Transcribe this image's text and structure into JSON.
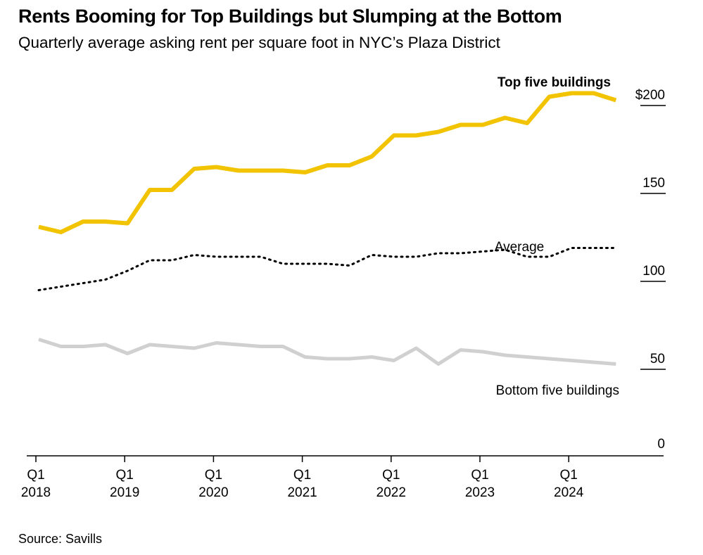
{
  "header": {
    "title": "Rents Booming for Top Buildings but Slumping at the Bottom",
    "subtitle": "Quarterly average asking rent per square foot in NYC’s Plaza District"
  },
  "footer": {
    "source": "Source: Savills"
  },
  "colors": {
    "top": "#f2c300",
    "average": "#000000",
    "bottom": "#d0d0d0",
    "axis": "#000000"
  },
  "chart_data": {
    "type": "line",
    "title": "Rents Booming for Top Buildings but Slumping at the Bottom",
    "subtitle": "Quarterly average asking rent per square foot in NYC’s Plaza District",
    "xlabel": "",
    "ylabel": "",
    "x": [
      "Q1 2018",
      "Q2 2018",
      "Q3 2018",
      "Q4 2018",
      "Q1 2019",
      "Q2 2019",
      "Q3 2019",
      "Q4 2019",
      "Q1 2020",
      "Q2 2020",
      "Q3 2020",
      "Q4 2020",
      "Q1 2021",
      "Q2 2021",
      "Q3 2021",
      "Q4 2021",
      "Q1 2022",
      "Q2 2022",
      "Q3 2022",
      "Q4 2022",
      "Q1 2023",
      "Q2 2023",
      "Q3 2023",
      "Q4 2023",
      "Q1 2024",
      "Q2 2024",
      "Q3 2024"
    ],
    "x_tick_labels": [
      {
        "quarter": "Q1",
        "year": "2018"
      },
      {
        "quarter": "Q1",
        "year": "2019"
      },
      {
        "quarter": "Q1",
        "year": "2020"
      },
      {
        "quarter": "Q1",
        "year": "2021"
      },
      {
        "quarter": "Q1",
        "year": "2022"
      },
      {
        "quarter": "Q1",
        "year": "2023"
      },
      {
        "quarter": "Q1",
        "year": "2024"
      }
    ],
    "y_tick_labels": [
      "0",
      "50",
      "100",
      "150",
      "$200"
    ],
    "y_ticks": [
      0,
      50,
      100,
      150,
      200
    ],
    "ylim": [
      0,
      210
    ],
    "grid": false,
    "series": [
      {
        "name": "Top five buildings",
        "key": "top",
        "style": "solid",
        "values": [
          127,
          124,
          130,
          130,
          129,
          148,
          148,
          160,
          161,
          159,
          159,
          159,
          158,
          162,
          162,
          167,
          179,
          179,
          181,
          185,
          185,
          189,
          186,
          201,
          203,
          203,
          199
        ]
      },
      {
        "name": "Average",
        "key": "average",
        "style": "dotted",
        "values": [
          91,
          93,
          95,
          97,
          102,
          108,
          108,
          111,
          110,
          110,
          110,
          106,
          106,
          106,
          105,
          111,
          110,
          110,
          112,
          112,
          113,
          114,
          110,
          110,
          115,
          115,
          115
        ]
      },
      {
        "name": "Bottom five buildings",
        "key": "bottom",
        "style": "solid",
        "values": [
          63,
          59,
          59,
          60,
          55,
          60,
          59,
          58,
          61,
          60,
          59,
          59,
          53,
          52,
          52,
          53,
          51,
          58,
          49,
          57,
          56,
          54,
          53,
          52,
          51,
          50,
          49
        ]
      }
    ]
  }
}
